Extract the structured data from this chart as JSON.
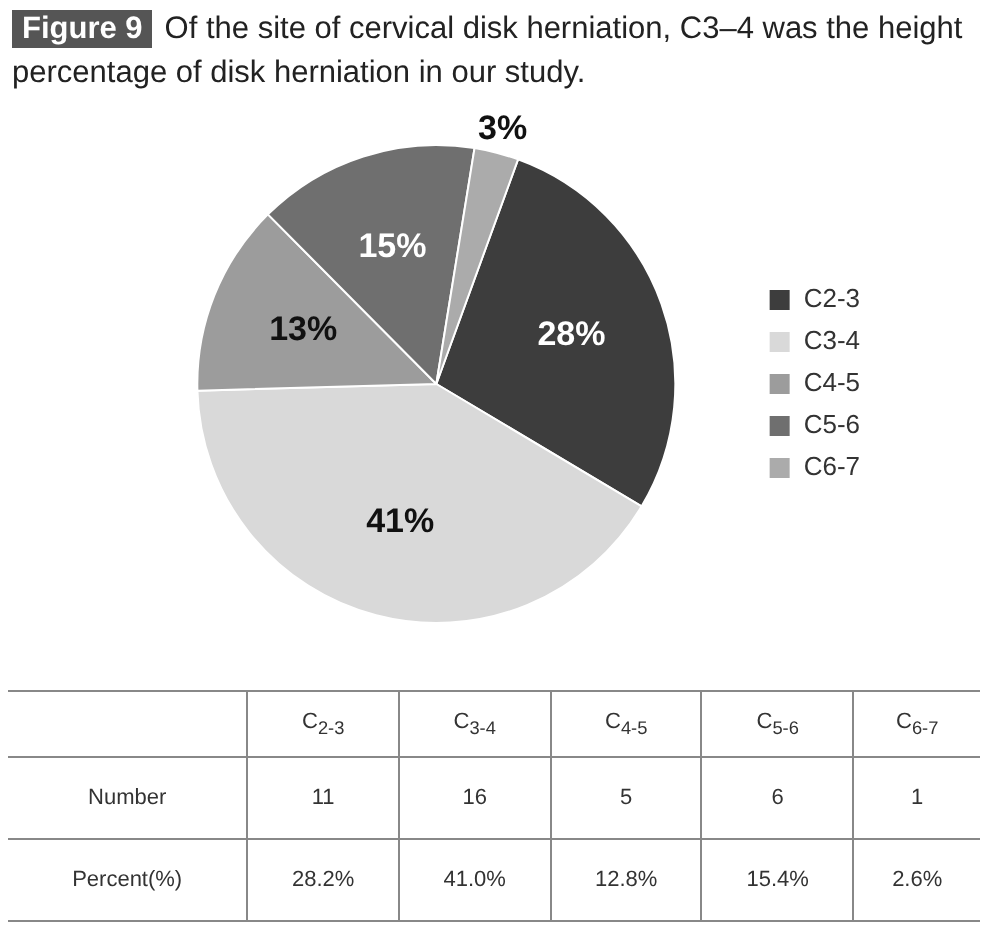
{
  "chart_data": {
    "type": "pie",
    "title": "Figure 9",
    "subtitle": "Of the site of cervical disk herniation, C3–4 was the height percentage of disk herniation in our study.",
    "categories": [
      "C2-3",
      "C3-4",
      "C4-5",
      "C5-6",
      "C6-7"
    ],
    "values": [
      28,
      41,
      13,
      15,
      3
    ],
    "value_labels": [
      "28%",
      "41%",
      "13%",
      "15%",
      "3%"
    ],
    "colors": [
      "#3d3d3d",
      "#d9d9d9",
      "#9c9c9c",
      "#6f6f6f",
      "#ababab"
    ],
    "legend": "right",
    "annotations": [
      "C$_{2-3}$",
      "C$_{3-4}$",
      "C$_{4-5}$",
      "C$_{5-6}$",
      "C$_{6-7}$",
      "Number",
      "11",
      "16",
      "5",
      "6",
      "1",
      "Percent(%)",
      "28.2%",
      "41.0%",
      "12.8%",
      "15.4%",
      "2.6%"
    ]
  }
}
